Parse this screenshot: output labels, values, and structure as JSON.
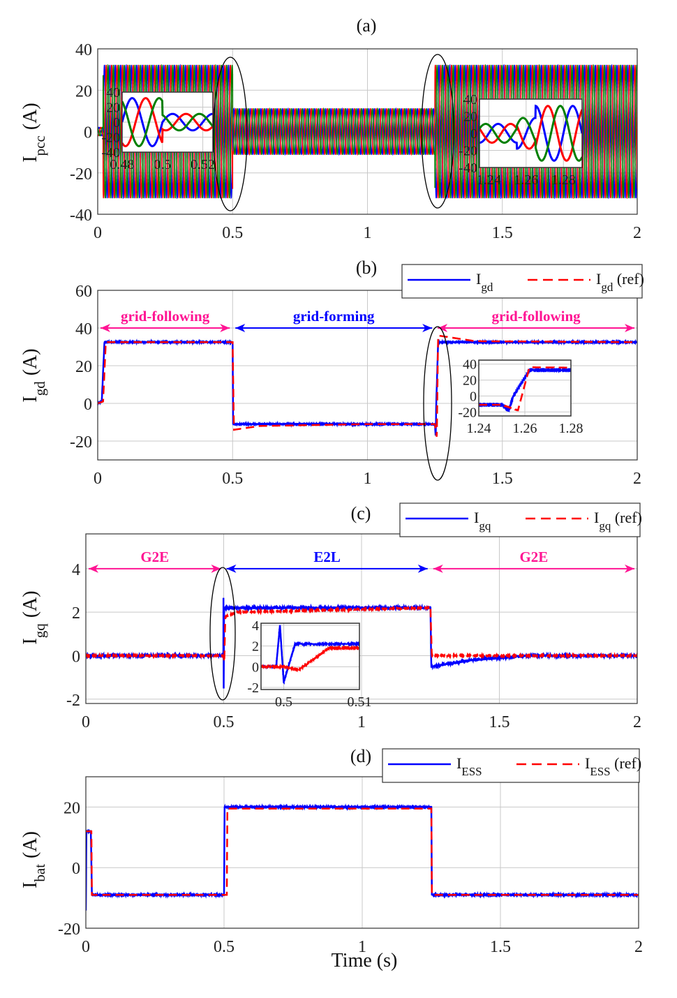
{
  "chart_data": [
    {
      "id": "a",
      "type": "line",
      "title": "(a)",
      "ylabel": "I",
      "ylabel_sub": "pcc",
      "ylabel_unit": "(A)",
      "xlim": [
        0,
        2
      ],
      "ylim": [
        -40,
        40
      ],
      "xticks": [
        0,
        0.5,
        1,
        1.5,
        2
      ],
      "xtick_labels": [
        "0",
        "0.5",
        "1",
        "1.5",
        "2"
      ],
      "yticks": [
        -40,
        -20,
        0,
        20,
        40
      ],
      "ytick_labels": [
        "-40",
        "-20",
        "0",
        "20",
        "40"
      ],
      "grid": true,
      "three_phase": {
        "frequency_hz": 50,
        "colors": [
          "#0000ff",
          "#ff0000",
          "#008000"
        ],
        "amplitude_segments": [
          [
            0,
            0.02,
            2
          ],
          [
            0.02,
            0.5,
            32
          ],
          [
            0.5,
            1.25,
            11
          ],
          [
            1.25,
            2,
            32
          ]
        ]
      },
      "insets": [
        {
          "xlim": [
            0.48,
            0.525
          ],
          "ylim": [
            -40,
            40
          ],
          "xticks": [
            0.48,
            0.5,
            0.52
          ],
          "xtick_labels": [
            "0.48",
            "0.5",
            "0.52"
          ],
          "yticks": [
            -40,
            -20,
            0,
            20,
            40
          ],
          "ytick_labels": [
            "-40",
            "-20",
            "0",
            "20",
            "40"
          ],
          "amplitude_segments": [
            [
              0.48,
              0.5,
              32
            ],
            [
              0.5,
              0.525,
              11
            ]
          ]
        },
        {
          "xlim": [
            1.235,
            1.29
          ],
          "ylim": [
            -40,
            40
          ],
          "xticks": [
            1.24,
            1.26,
            1.28
          ],
          "xtick_labels": [
            "1.24",
            "1.26",
            "1.28"
          ],
          "yticks": [
            -40,
            -20,
            0,
            20,
            40
          ],
          "ytick_labels": [
            "-40",
            "-20",
            "0",
            "20",
            "40"
          ],
          "amplitude_segments": [
            [
              1.235,
              1.255,
              11
            ],
            [
              1.255,
              1.265,
              18
            ],
            [
              1.265,
              1.29,
              32
            ]
          ]
        }
      ],
      "highlight_ellipses_at": [
        0.5,
        1.25
      ]
    },
    {
      "id": "b",
      "type": "line",
      "title": "(b)",
      "ylabel": "I",
      "ylabel_sub": "gd",
      "ylabel_unit": "(A)",
      "xlim": [
        0,
        2
      ],
      "ylim": [
        -30,
        60
      ],
      "xticks": [
        0,
        0.5,
        1,
        1.5,
        2
      ],
      "xtick_labels": [
        "0",
        "0.5",
        "1",
        "1.5",
        "2"
      ],
      "yticks": [
        -20,
        0,
        20,
        40,
        60
      ],
      "ytick_labels": [
        "-20",
        "0",
        "20",
        "40",
        "60"
      ],
      "grid": true,
      "legend": {
        "placement": "top-right",
        "entries": [
          {
            "name": "I",
            "sub": "gd",
            "suffix": ""
          },
          {
            "name": "I",
            "sub": "gd",
            "suffix": " (ref)"
          }
        ]
      },
      "series": [
        {
          "name": "Igd",
          "color": "#0000ff",
          "style": "solid",
          "noise": 0.4,
          "points": [
            [
              0,
              0
            ],
            [
              0.015,
              1
            ],
            [
              0.025,
              32.5
            ],
            [
              0.5,
              32.5
            ],
            [
              0.502,
              -11
            ],
            [
              1.25,
              -11
            ],
            [
              1.253,
              -18
            ],
            [
              1.255,
              0
            ],
            [
              1.262,
              32.5
            ],
            [
              2,
              32.5
            ]
          ]
        },
        {
          "name": "Igd (ref)",
          "color": "#ff0000",
          "style": "dashed",
          "noise": 0,
          "points": [
            [
              0,
              0
            ],
            [
              0.02,
              1
            ],
            [
              0.03,
              32.5
            ],
            [
              0.5,
              32.5
            ],
            [
              0.505,
              -14
            ],
            [
              0.6,
              -12
            ],
            [
              1.0,
              -11
            ],
            [
              1.25,
              -11
            ],
            [
              1.257,
              -18
            ],
            [
              1.262,
              36
            ],
            [
              1.4,
              33
            ],
            [
              2,
              32.5
            ]
          ]
        }
      ],
      "annotations": [
        {
          "text": "grid-following",
          "color": "#ff1493",
          "x_from": 0,
          "x_to": 0.5,
          "y": 40
        },
        {
          "text": "grid-forming",
          "color": "#0000ff",
          "x_from": 0.5,
          "x_to": 1.25,
          "y": 40
        },
        {
          "text": "grid-following",
          "color": "#ff1493",
          "x_from": 1.25,
          "x_to": 2,
          "y": 40
        }
      ],
      "insets": [
        {
          "xlim": [
            1.24,
            1.28
          ],
          "ylim": [
            -25,
            45
          ],
          "xticks": [
            1.24,
            1.26,
            1.28
          ],
          "xtick_labels": [
            "1.24",
            "1.26",
            "1.28"
          ],
          "yticks": [
            -20,
            0,
            20,
            40
          ],
          "ytick_labels": [
            "-20",
            "0",
            "20",
            "40"
          ]
        }
      ],
      "highlight_ellipses_at": [
        1.25
      ]
    },
    {
      "id": "c",
      "type": "line",
      "title": "(c)",
      "ylabel": "I",
      "ylabel_sub": "gq",
      "ylabel_unit": "(A)",
      "xlim": [
        0,
        2
      ],
      "ylim": [
        -2.2,
        5.6
      ],
      "xticks": [
        0,
        0.5,
        1,
        1.5,
        2
      ],
      "xtick_labels": [
        "0",
        "0.5",
        "1",
        "1.5",
        "2"
      ],
      "yticks": [
        -2,
        0,
        2,
        4
      ],
      "ytick_labels": [
        "-2",
        "0",
        "2",
        "4"
      ],
      "grid": true,
      "legend": {
        "placement": "top-right",
        "entries": [
          {
            "name": "I",
            "sub": "gq",
            "suffix": ""
          },
          {
            "name": "I",
            "sub": "gq",
            "suffix": " (ref)"
          }
        ]
      },
      "series": [
        {
          "name": "Igq",
          "color": "#0000ff",
          "style": "solid",
          "noise": 0.12,
          "points": [
            [
              0,
              0
            ],
            [
              0.499,
              0
            ],
            [
              0.4995,
              4
            ],
            [
              0.5,
              -1.5
            ],
            [
              0.5015,
              2.2
            ],
            [
              1.25,
              2.2
            ],
            [
              1.253,
              -0.5
            ],
            [
              1.4,
              -0.2
            ],
            [
              1.6,
              0
            ],
            [
              2,
              0
            ]
          ]
        },
        {
          "name": "Igq (ref)",
          "color": "#ff0000",
          "style": "dashed",
          "noise": 0.04,
          "points": [
            [
              0,
              0
            ],
            [
              0.5,
              0
            ],
            [
              0.502,
              -0.3
            ],
            [
              0.506,
              1.8
            ],
            [
              0.55,
              2
            ],
            [
              1.25,
              2.2
            ],
            [
              1.255,
              0
            ],
            [
              2,
              0
            ]
          ]
        }
      ],
      "annotations": [
        {
          "text": "G2E",
          "color": "#ff1493",
          "x_from": 0,
          "x_to": 0.5,
          "y": 4
        },
        {
          "text": "E2L",
          "color": "#0000ff",
          "x_from": 0.5,
          "x_to": 1.25,
          "y": 4
        },
        {
          "text": "G2E",
          "color": "#ff1493",
          "x_from": 1.25,
          "x_to": 2,
          "y": 4
        }
      ],
      "insets": [
        {
          "xlim": [
            0.497,
            0.51
          ],
          "ylim": [
            -2.2,
            4.2
          ],
          "xticks": [
            0.5,
            0.51
          ],
          "xtick_labels": [
            "0.5",
            "0.51"
          ],
          "yticks": [
            -2,
            0,
            2,
            4
          ],
          "ytick_labels": [
            "-2",
            "0",
            "2",
            "4"
          ]
        }
      ],
      "highlight_ellipses_at": [
        0.5
      ]
    },
    {
      "id": "d",
      "type": "line",
      "title": "(d)",
      "ylabel": "I",
      "ylabel_sub": "bat",
      "ylabel_unit": "(A)",
      "xlabel": "Time (s)",
      "xlim": [
        0,
        2
      ],
      "ylim": [
        -20,
        30
      ],
      "xticks": [
        0,
        0.5,
        1,
        1.5,
        2
      ],
      "xtick_labels": [
        "0",
        "0.5",
        "1",
        "1.5",
        "2"
      ],
      "yticks": [
        -20,
        0,
        20
      ],
      "ytick_labels": [
        "-20",
        "0",
        "20"
      ],
      "grid": true,
      "legend": {
        "placement": "top-right",
        "entries": [
          {
            "name": "I",
            "sub": "ESS",
            "suffix": ""
          },
          {
            "name": "I",
            "sub": "ESS",
            "suffix": " (ref)"
          }
        ]
      },
      "series": [
        {
          "name": "IESS",
          "color": "#0000ff",
          "style": "solid",
          "noise": 0.3,
          "points": [
            [
              0,
              -14
            ],
            [
              0.002,
              12
            ],
            [
              0.018,
              12
            ],
            [
              0.022,
              -9
            ],
            [
              0.5,
              -9
            ],
            [
              0.502,
              20
            ],
            [
              1.25,
              20
            ],
            [
              1.252,
              -9
            ],
            [
              2,
              -9
            ]
          ]
        },
        {
          "name": "IESS (ref)",
          "color": "#ff0000",
          "style": "dashed",
          "noise": 0,
          "points": [
            [
              0,
              12
            ],
            [
              0.02,
              12
            ],
            [
              0.022,
              -9
            ],
            [
              0.51,
              -9
            ],
            [
              0.512,
              19.5
            ],
            [
              1.25,
              19.5
            ],
            [
              1.252,
              -9
            ],
            [
              2,
              -9
            ]
          ]
        }
      ]
    }
  ]
}
